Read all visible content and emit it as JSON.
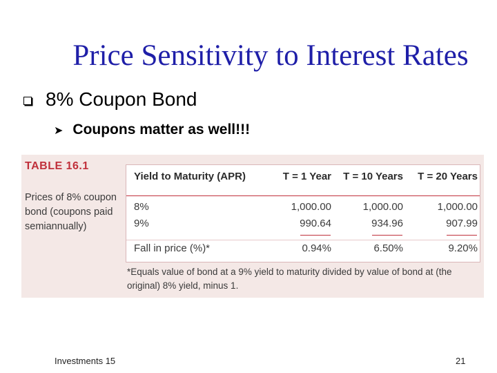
{
  "slide": {
    "title": "Price Sensitivity to Interest Rates",
    "bullet_1": "8% Coupon Bond",
    "bullet_2": "Coupons matter as well!!!"
  },
  "table": {
    "label": "TABLE 16.1",
    "caption": "Prices of 8% coupon bond (coupons paid semiannually)",
    "headers": [
      "Yield to Maturity (APR)",
      "T = 1 Year",
      "T = 10 Years",
      "T = 20 Years"
    ],
    "rows": [
      [
        "8%",
        "1,000.00",
        "1,000.00",
        "1,000.00"
      ],
      [
        "9%",
        "990.64",
        "934.96",
        "907.99"
      ],
      [
        "Fall in price (%)*",
        "0.94%",
        "6.50%",
        "9.20%"
      ]
    ],
    "footnote": "*Equals value of bond at a 9% yield to maturity divided by value of bond at (the original) 8% yield, minus 1."
  },
  "footer": {
    "left": "Investments 15",
    "page_number": "21"
  },
  "colors": {
    "title": "#1f1fa8",
    "table_accent": "#c0303b",
    "table_background": "#f4e8e6"
  },
  "icons": {
    "bullet_1": "square-bullet-icon",
    "bullet_2": "arrowhead-bullet-icon"
  }
}
